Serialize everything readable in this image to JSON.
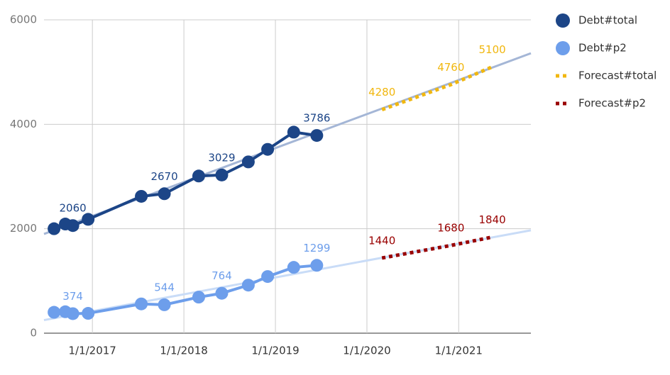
{
  "chart_data": {
    "type": "line",
    "xlim": [
      "6/22/2016",
      "10/16/2021"
    ],
    "xticks": [
      "1/1/2017",
      "1/1/2018",
      "1/1/2019",
      "1/1/2020",
      "1/1/2021"
    ],
    "ylim": [
      0,
      6000
    ],
    "yticks": [
      0,
      2000,
      4000,
      6000
    ],
    "grid": true,
    "legend": "right",
    "series": [
      {
        "name": "Debt#total",
        "color": "#1c4587",
        "style": "line-marker",
        "x": [
          "8/1/2016",
          "9/15/2016",
          "10/15/2016",
          "12/15/2016",
          "7/15/2017",
          "10/15/2017",
          "3/1/2018",
          "6/1/2018",
          "9/15/2018",
          "12/1/2018",
          "3/15/2019",
          "6/15/2019"
        ],
        "values": [
          2000,
          2090,
          2060,
          2180,
          2620,
          2670,
          3010,
          3029,
          3280,
          3520,
          3850,
          3786
        ],
        "value_labels": [
          null,
          null,
          "2060",
          null,
          null,
          "2670",
          null,
          "3029",
          null,
          null,
          null,
          "3786"
        ],
        "trendline": {
          "color": "#a4b6d6",
          "values": [
            1900,
            5360
          ]
        }
      },
      {
        "name": "Debt#p2",
        "color": "#6d9eeb",
        "style": "line-marker",
        "x": [
          "8/1/2016",
          "9/15/2016",
          "10/15/2016",
          "12/15/2016",
          "7/15/2017",
          "10/15/2017",
          "3/1/2018",
          "6/1/2018",
          "9/15/2018",
          "12/1/2018",
          "3/15/2019",
          "6/15/2019"
        ],
        "values": [
          400,
          410,
          374,
          380,
          560,
          544,
          690,
          764,
          920,
          1085,
          1260,
          1299
        ],
        "value_labels": [
          null,
          null,
          "374",
          null,
          null,
          "544",
          null,
          "764",
          null,
          null,
          null,
          "1299"
        ],
        "trendline": {
          "color": "#c9dcf7",
          "values": [
            250,
            1970
          ]
        }
      },
      {
        "name": "Forecast#total",
        "color": "#f1b70f",
        "style": "dotted",
        "x": [
          "3/1/2020",
          "12/1/2020",
          "5/15/2021"
        ],
        "values": [
          4280,
          4760,
          5100
        ],
        "value_labels": [
          "4280",
          "4760",
          "5100"
        ]
      },
      {
        "name": "Forecast#p2",
        "color": "#990000",
        "style": "dotted",
        "x": [
          "3/1/2020",
          "12/1/2020",
          "5/15/2021"
        ],
        "values": [
          1440,
          1680,
          1840
        ],
        "value_labels": [
          "1440",
          "1680",
          "1840"
        ]
      }
    ]
  }
}
